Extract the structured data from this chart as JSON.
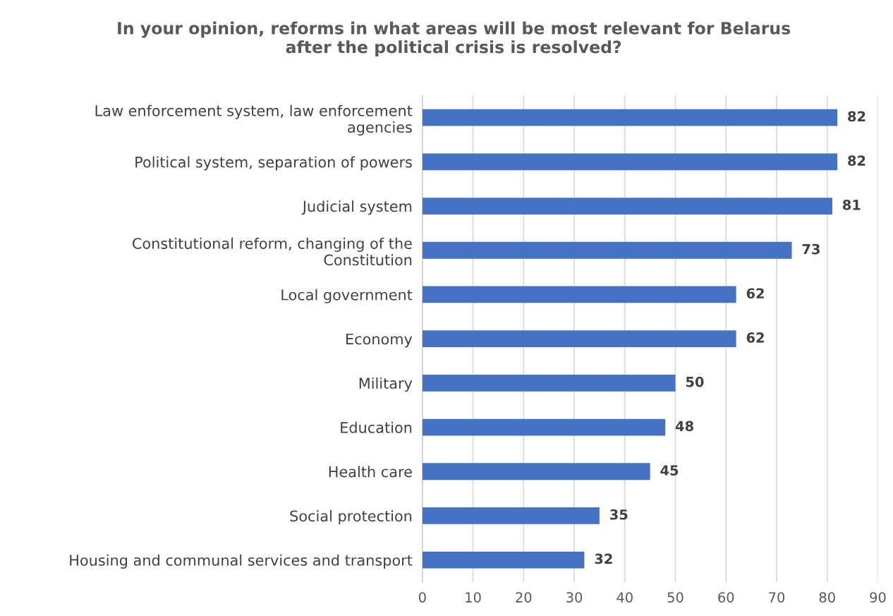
{
  "chart_data": {
    "type": "bar",
    "orientation": "horizontal",
    "title": "In your opinion, reforms in what areas will be most relevant for Belarus\nafter the political crisis is resolved?",
    "categories": [
      "Law enforcement system, law enforcement\nagencies",
      "Political system, separation of powers",
      "Judicial system",
      "Constitutional reform, changing of the\nConstitution",
      "Local government",
      "Economy",
      "Military",
      "Education",
      "Health care",
      "Social protection",
      "Housing and communal services and transport"
    ],
    "values": [
      82,
      82,
      81,
      73,
      62,
      62,
      50,
      48,
      45,
      35,
      32
    ],
    "color": "#4472c4",
    "xlim": [
      0,
      90
    ],
    "xticks": [
      0,
      10,
      20,
      30,
      40,
      50,
      60,
      70,
      80,
      90
    ],
    "grid": "x",
    "data_labels": true
  }
}
